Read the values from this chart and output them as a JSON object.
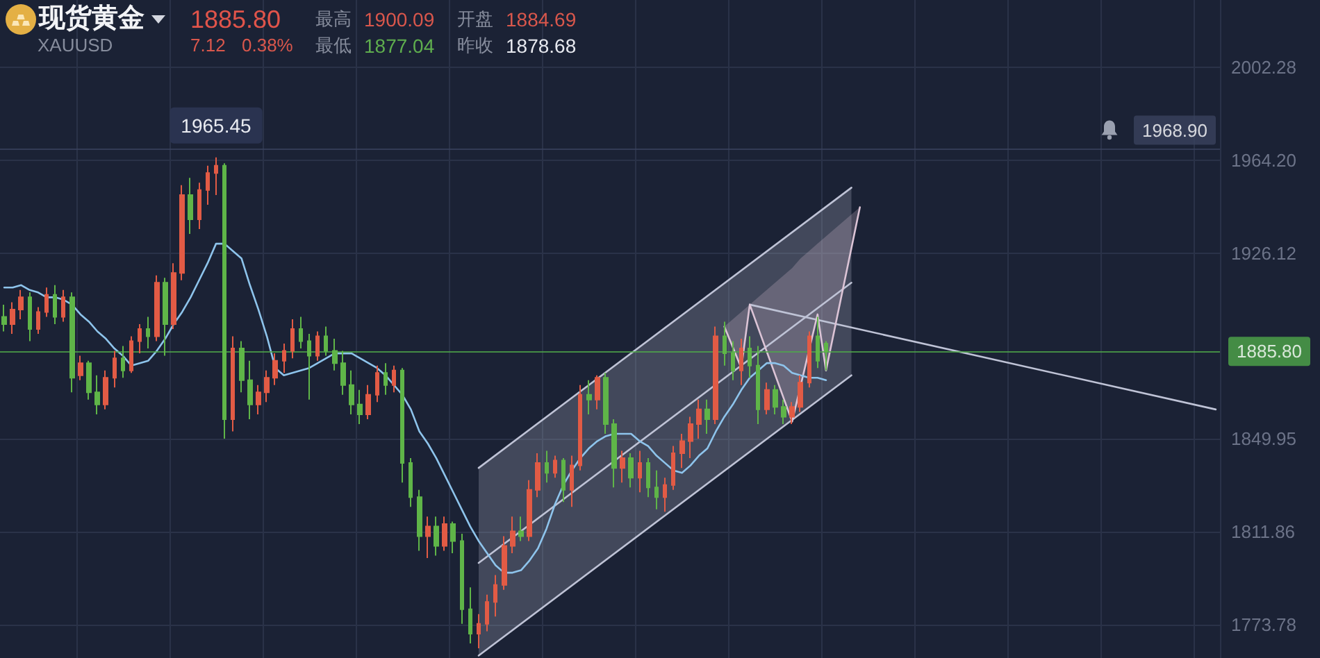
{
  "chart_data": {
    "type": "candlestick",
    "title": "现货黄金",
    "subtitle": "XAUUSD",
    "categories": [
      null,
      null,
      null,
      null,
      null,
      null,
      null,
      null,
      null,
      null,
      null,
      null,
      null,
      null,
      null,
      null,
      null,
      null,
      null,
      null,
      null,
      null,
      null,
      null,
      null,
      null,
      null,
      null,
      null,
      null,
      null,
      null,
      null,
      null,
      null,
      null,
      null,
      null,
      null,
      null,
      null,
      null,
      null,
      null,
      null,
      null,
      null,
      null,
      null,
      null,
      null,
      null,
      null,
      null,
      null,
      null,
      null,
      null,
      null,
      null,
      null,
      null,
      null,
      null,
      null,
      null,
      null,
      null,
      null,
      null,
      null,
      null,
      null,
      null,
      null,
      null,
      null,
      null,
      null,
      null,
      null,
      null,
      null,
      null,
      null,
      null,
      null,
      null,
      null,
      null,
      null,
      null,
      null,
      null,
      null,
      null,
      null,
      null,
      null,
      null,
      null,
      null,
      null,
      null,
      null,
      null,
      null,
      null,
      null,
      null,
      null,
      null,
      null,
      null,
      null,
      null,
      null,
      null,
      null,
      null,
      null,
      null,
      null,
      null,
      null,
      null,
      null,
      null,
      null,
      null,
      null,
      null,
      null,
      null,
      null,
      null,
      null,
      null,
      null,
      null,
      null,
      null,
      null,
      null
    ],
    "ohlc": [
      [
        1900,
        1905,
        1894,
        1897
      ],
      [
        1897,
        1906,
        1893,
        1903
      ],
      [
        1903,
        1911,
        1899,
        1908
      ],
      [
        1908,
        1910,
        1890,
        1895
      ],
      [
        1895,
        1904,
        1893,
        1902
      ],
      [
        1902,
        1912,
        1900,
        1909
      ],
      [
        1909,
        1913,
        1897,
        1900
      ],
      [
        1900,
        1911,
        1898,
        1908
      ],
      [
        1908,
        1910,
        1869,
        1875
      ],
      [
        1876,
        1884,
        1874,
        1881
      ],
      [
        1881,
        1882,
        1866,
        1869
      ],
      [
        1869,
        1876,
        1860,
        1864
      ],
      [
        1864,
        1878,
        1862,
        1875
      ],
      [
        1875,
        1886,
        1871,
        1883
      ],
      [
        1883,
        1888,
        1875,
        1878
      ],
      [
        1878,
        1892,
        1877,
        1890
      ],
      [
        1890,
        1897,
        1885,
        1895
      ],
      [
        1895,
        1900,
        1887,
        1892
      ],
      [
        1892,
        1917,
        1890,
        1914
      ],
      [
        1914,
        1916,
        1884,
        1897
      ],
      [
        1897,
        1922,
        1895,
        1918
      ],
      [
        1918,
        1954,
        1915,
        1950
      ],
      [
        1950,
        1957,
        1934,
        1940
      ],
      [
        1940,
        1955,
        1936,
        1952
      ],
      [
        1952,
        1962,
        1946,
        1959
      ],
      [
        1959,
        1965.45,
        1950,
        1962
      ],
      [
        1962,
        1963,
        1850,
        1858
      ],
      [
        1858,
        1892,
        1853,
        1887
      ],
      [
        1887,
        1890,
        1869,
        1874
      ],
      [
        1874,
        1882,
        1858,
        1864
      ],
      [
        1864,
        1872,
        1860,
        1869
      ],
      [
        1869,
        1878,
        1865,
        1875
      ],
      [
        1875,
        1885,
        1872,
        1882
      ],
      [
        1882,
        1889,
        1877,
        1886
      ],
      [
        1886,
        1899,
        1883,
        1895
      ],
      [
        1895,
        1900,
        1887,
        1890
      ],
      [
        1890,
        1893,
        1866,
        1884
      ],
      [
        1884,
        1894,
        1882,
        1892
      ],
      [
        1892,
        1896,
        1884,
        1886
      ],
      [
        1886,
        1891,
        1878,
        1881
      ],
      [
        1881,
        1886,
        1868,
        1872
      ],
      [
        1872,
        1878,
        1860,
        1864
      ],
      [
        1864,
        1870,
        1856,
        1860
      ],
      [
        1860,
        1872,
        1858,
        1868
      ],
      [
        1868,
        1880,
        1865,
        1877
      ],
      [
        1877,
        1881,
        1868,
        1872
      ],
      [
        1872,
        1880,
        1869,
        1878
      ],
      [
        1878,
        1879,
        1832,
        1840
      ],
      [
        1840,
        1842,
        1822,
        1826
      ],
      [
        1826,
        1829,
        1804,
        1810
      ],
      [
        1810,
        1818,
        1801,
        1814
      ],
      [
        1814,
        1818,
        1802,
        1806
      ],
      [
        1806,
        1818,
        1804,
        1815
      ],
      [
        1815,
        1816,
        1803,
        1808
      ],
      [
        1808,
        1811,
        1774,
        1780
      ],
      [
        1780,
        1789,
        1766,
        1770
      ],
      [
        1770,
        1778,
        1764,
        1774
      ],
      [
        1774,
        1786,
        1771,
        1783
      ],
      [
        1783,
        1794,
        1777,
        1790
      ],
      [
        1790,
        1810,
        1788,
        1806
      ],
      [
        1806,
        1818,
        1803,
        1812
      ],
      [
        1812,
        1818,
        1808,
        1810
      ],
      [
        1810,
        1833,
        1808,
        1829
      ],
      [
        1829,
        1844,
        1826,
        1840
      ],
      [
        1840,
        1845,
        1832,
        1836
      ],
      [
        1836,
        1843,
        1834,
        1841
      ],
      [
        1841,
        1842,
        1824,
        1829
      ],
      [
        1829,
        1843,
        1822,
        1839
      ],
      [
        1839,
        1872,
        1837,
        1868
      ],
      [
        1868,
        1874,
        1860,
        1866
      ],
      [
        1866,
        1876,
        1862,
        1875
      ],
      [
        1875,
        1877,
        1852,
        1856
      ],
      [
        1856,
        1858,
        1830,
        1838
      ],
      [
        1838,
        1845,
        1832,
        1842
      ],
      [
        1842,
        1844,
        1830,
        1834
      ],
      [
        1834,
        1845,
        1828,
        1840
      ],
      [
        1840,
        1842,
        1826,
        1830
      ],
      [
        1830,
        1837,
        1821,
        1826
      ],
      [
        1826,
        1834,
        1820,
        1831
      ],
      [
        1831,
        1847,
        1829,
        1844
      ],
      [
        1844,
        1852,
        1838,
        1849
      ],
      [
        1849,
        1859,
        1842,
        1856
      ],
      [
        1856,
        1866,
        1850,
        1862
      ],
      [
        1862,
        1866,
        1852,
        1858
      ],
      [
        1858,
        1896,
        1856,
        1892
      ],
      [
        1892,
        1898,
        1880,
        1885
      ],
      [
        1885,
        1890,
        1874,
        1878
      ],
      [
        1878,
        1891,
        1872,
        1887
      ],
      [
        1887,
        1892,
        1875,
        1880
      ],
      [
        1880,
        1888,
        1856,
        1862
      ],
      [
        1862,
        1873,
        1860,
        1870
      ],
      [
        1870,
        1872,
        1860,
        1863
      ],
      [
        1863,
        1866,
        1856,
        1859
      ],
      [
        1859,
        1865,
        1856,
        1863
      ],
      [
        1863,
        1876,
        1861,
        1873
      ],
      [
        1873,
        1894,
        1871,
        1892
      ],
      [
        1892,
        1900,
        1879,
        1882
      ],
      [
        1889,
        1890,
        1878,
        1885.8
      ],
      null,
      null,
      null,
      null,
      null,
      null,
      null,
      null,
      null,
      null,
      null,
      null,
      null,
      null,
      null,
      null,
      null,
      null,
      null,
      null,
      null,
      null,
      null,
      null,
      null,
      null,
      null,
      null,
      null,
      null,
      null,
      null,
      null,
      null,
      null,
      null,
      null,
      null,
      null,
      null,
      null,
      null,
      null,
      null,
      null,
      null
    ],
    "colors": [
      "#5fb548",
      "#e25b45",
      "#e25b45",
      "#5fb548",
      "#e25b45",
      "#e25b45",
      "#5fb548",
      "#e25b45",
      "#5fb548",
      "#e25b45",
      "#5fb548",
      "#5fb548",
      "#e25b45",
      "#e25b45",
      "#5fb548",
      "#e25b45",
      "#e25b45",
      "#5fb548",
      "#e25b45",
      "#5fb548",
      "#e25b45",
      "#e25b45",
      "#5fb548",
      "#e25b45",
      "#e25b45",
      "#e25b45",
      "#5fb548",
      "#e25b45",
      "#5fb548",
      "#5fb548",
      "#e25b45",
      "#e25b45",
      "#e25b45",
      "#e25b45",
      "#e25b45",
      "#5fb548",
      "#5fb548",
      "#e25b45",
      "#5fb548",
      "#5fb548",
      "#5fb548",
      "#5fb548",
      "#5fb548",
      "#e25b45",
      "#e25b45",
      "#5fb548",
      "#e25b45",
      "#5fb548",
      "#5fb548",
      "#5fb548",
      "#e25b45",
      "#5fb548",
      "#e25b45",
      "#5fb548",
      "#5fb548",
      "#5fb548",
      "#e25b45",
      "#e25b45",
      "#e25b45",
      "#e25b45",
      "#e25b45",
      "#5fb548",
      "#e25b45",
      "#e25b45",
      "#5fb548",
      "#e25b45",
      "#5fb548",
      "#e25b45",
      "#e25b45",
      "#5fb548",
      "#e25b45",
      "#5fb548",
      "#5fb548",
      "#e25b45",
      "#5fb548",
      "#e25b45",
      "#5fb548",
      "#5fb548",
      "#e25b45",
      "#e25b45",
      "#e25b45",
      "#e25b45",
      "#e25b45",
      "#5fb548",
      "#e25b45",
      "#5fb548",
      "#5fb548",
      "#e25b45",
      "#5fb548",
      "#5fb548",
      "#e25b45",
      "#5fb548",
      "#5fb548",
      "#e25b45",
      "#e25b45",
      "#e25b45",
      "#5fb548",
      "#5fb548",
      null,
      null,
      null,
      null,
      null,
      null,
      null,
      null,
      null,
      null,
      null,
      null,
      null,
      null,
      null,
      null,
      null,
      null,
      null,
      null,
      null,
      null,
      null,
      null,
      null,
      null,
      null,
      null,
      null,
      null,
      null,
      null,
      null,
      null,
      null,
      null,
      null,
      null,
      null,
      null,
      null,
      null,
      null,
      null,
      null,
      null
    ],
    "ylim": [
      1760,
      2030
    ],
    "yticks": [
      1773.78,
      1811.86,
      1849.95,
      1926.12,
      {
        "value": 1964.2,
        "label": "1964.20"
      },
      2002.28
    ],
    "grid": true,
    "tick_labels": "y",
    "series": [
      {
        "type": "line",
        "color": "#bfc3d6",
        "values": [
          null,
          null,
          null,
          null,
          null,
          null,
          null,
          null,
          null,
          null,
          null,
          null,
          null,
          null,
          null,
          null,
          null,
          null,
          null,
          null,
          null,
          null,
          null,
          null,
          null,
          null,
          null,
          null,
          null,
          null,
          null,
          null,
          null,
          null,
          null,
          null,
          null,
          null,
          null,
          null,
          null,
          null,
          null,
          null,
          null,
          null,
          null,
          null,
          null,
          null,
          null,
          null,
          null,
          null,
          null,
          null,
          1838,
          null,
          null,
          null,
          null,
          null,
          null,
          null,
          null,
          null,
          null,
          null,
          null,
          null,
          null,
          null,
          null,
          null,
          null,
          null,
          null,
          null,
          null,
          null,
          null,
          null,
          null,
          null,
          null,
          null,
          null,
          null,
          null,
          null,
          null,
          null,
          null,
          null,
          null,
          null,
          null,
          null,
          null,
          null,
          1953,
          null,
          null,
          null,
          null,
          null,
          null,
          null,
          null,
          null,
          null,
          null,
          null,
          null,
          null,
          null,
          null,
          null,
          null,
          null,
          null,
          null,
          null,
          null,
          null,
          null,
          null,
          null,
          null,
          null,
          null,
          null,
          null,
          null,
          null,
          null,
          null,
          null,
          null,
          null,
          null,
          null,
          null,
          null
        ]
      },
      {
        "type": "line",
        "color": "#bfc3d6",
        "values": [
          null,
          null,
          null,
          null,
          null,
          null,
          null,
          null,
          null,
          null,
          null,
          null,
          null,
          null,
          null,
          null,
          null,
          null,
          null,
          null,
          null,
          null,
          null,
          null,
          null,
          null,
          null,
          null,
          null,
          null,
          null,
          null,
          null,
          null,
          null,
          null,
          null,
          null,
          null,
          null,
          null,
          null,
          null,
          null,
          null,
          null,
          null,
          null,
          null,
          null,
          null,
          null,
          null,
          null,
          null,
          null,
          1799,
          null,
          null,
          null,
          null,
          null,
          null,
          null,
          null,
          null,
          null,
          null,
          null,
          null,
          null,
          null,
          null,
          null,
          null,
          null,
          null,
          null,
          null,
          null,
          null,
          null,
          null,
          null,
          null,
          null,
          null,
          null,
          null,
          null,
          null,
          null,
          null,
          null,
          null,
          null,
          null,
          null,
          null,
          null,
          1914,
          null,
          null,
          null,
          null,
          null,
          null,
          null,
          null,
          null,
          null,
          null,
          null,
          null,
          null,
          null,
          null,
          null,
          null,
          null,
          null,
          null,
          null,
          null,
          null,
          null,
          null,
          null,
          null,
          null,
          null,
          null,
          null,
          null,
          null,
          null,
          null,
          null,
          null,
          null,
          null,
          null,
          null,
          null
        ],
        "lower": [
          null,
          null,
          null,
          null,
          null,
          null,
          null,
          null,
          null,
          null,
          null,
          null,
          null,
          null,
          null,
          null,
          null,
          null,
          null,
          null,
          null,
          null,
          null,
          null,
          null,
          null,
          null,
          null,
          null,
          null,
          null,
          null,
          null,
          null,
          null,
          null,
          null,
          null,
          null,
          null,
          null,
          null,
          null,
          null,
          null,
          null,
          null,
          null,
          null,
          null,
          null,
          null,
          null,
          null,
          null,
          null,
          1761,
          1764,
          1766,
          1769,
          1771,
          1774,
          1777,
          1779,
          1782,
          1785,
          1787,
          1790,
          1792,
          1795,
          1798,
          1800,
          1803,
          1805,
          1808,
          1811,
          1813,
          1816,
          1819,
          1821,
          1824,
          1826,
          1829,
          1832,
          1834,
          1837,
          1839,
          1842,
          1845,
          1847,
          1850,
          1852,
          1855,
          1858,
          1860,
          1863,
          1866,
          1868,
          1871,
          1873,
          1876,
          null,
          null,
          null,
          null,
          null,
          null,
          null,
          null,
          null,
          null,
          null,
          null,
          null,
          null,
          null,
          null,
          null,
          null,
          null,
          null,
          null,
          null,
          null,
          null,
          null,
          null,
          null,
          null,
          null,
          null,
          null,
          null,
          null,
          null,
          null,
          null,
          null,
          null,
          null,
          null,
          null,
          null,
          null
        ],
        "upper": [
          null,
          null,
          null,
          null,
          null,
          null,
          null,
          null,
          null,
          null,
          null,
          null,
          null,
          null,
          null,
          null,
          null,
          null,
          null,
          null,
          null,
          null,
          null,
          null,
          null,
          null,
          null,
          null,
          null,
          null,
          null,
          null,
          null,
          null,
          null,
          null,
          null,
          null,
          null,
          null,
          null,
          null,
          null,
          null,
          null,
          null,
          null,
          null,
          null,
          null,
          null,
          null,
          null,
          null,
          null,
          null,
          1838,
          1841,
          1843,
          1846,
          1848,
          1851,
          1854,
          1856,
          1859,
          1862,
          1864,
          1867,
          1869,
          1872,
          1875,
          1877,
          1880,
          1882,
          1885,
          1888,
          1890,
          1893,
          1896,
          1898,
          1901,
          1903,
          1906,
          1909,
          1911,
          1914,
          1916,
          1919,
          1922,
          1924,
          1927,
          1929,
          1932,
          1935,
          1937,
          1940,
          1943,
          1945,
          1948,
          1950,
          1953,
          null,
          null,
          null,
          null,
          null,
          null,
          null,
          null,
          null,
          null,
          null,
          null,
          null,
          null,
          null,
          null,
          null,
          null,
          null,
          null,
          null,
          null,
          null,
          null,
          null,
          null,
          null,
          null,
          null,
          null,
          null,
          null,
          null,
          null,
          null,
          null,
          null,
          null,
          null,
          null,
          null,
          null,
          null
        ]
      },
      {
        "type": "line",
        "color": "#bfc3d6",
        "values": [
          null,
          null,
          null,
          null,
          null,
          null,
          null,
          null,
          null,
          null,
          null,
          null,
          null,
          null,
          null,
          null,
          null,
          null,
          null,
          null,
          null,
          null,
          null,
          null,
          null,
          null,
          null,
          null,
          null,
          null,
          null,
          null,
          null,
          null,
          null,
          null,
          null,
          null,
          null,
          null,
          null,
          null,
          null,
          null,
          null,
          null,
          null,
          null,
          null,
          null,
          null,
          null,
          null,
          null,
          null,
          null,
          1761,
          null,
          null,
          null,
          null,
          null,
          null,
          null,
          null,
          null,
          null,
          null,
          null,
          null,
          null,
          null,
          null,
          null,
          null,
          null,
          null,
          null,
          null,
          null,
          null,
          null,
          null,
          null,
          null,
          null,
          null,
          null,
          null,
          null,
          null,
          null,
          null,
          null,
          null,
          null,
          null,
          null,
          null,
          null,
          1876,
          null,
          null,
          null,
          null,
          null,
          null,
          null,
          null,
          null,
          null,
          null,
          null,
          null,
          null,
          null,
          null,
          null,
          null,
          null,
          null,
          null,
          null,
          null,
          null,
          null,
          null,
          null,
          null,
          null,
          null,
          null,
          null,
          null,
          null,
          null,
          null,
          null,
          null,
          null,
          null,
          null,
          null,
          null
        ]
      },
      {
        "type": "line",
        "color": "#bfc3d6",
        "values": [
          null,
          null,
          null,
          null,
          null,
          null,
          null,
          null,
          null,
          null,
          null,
          null,
          null,
          null,
          null,
          null,
          null,
          null,
          null,
          null,
          null,
          null,
          null,
          null,
          null,
          null,
          null,
          null,
          null,
          null,
          null,
          null,
          null,
          null,
          null,
          null,
          null,
          null,
          null,
          null,
          null,
          null,
          null,
          null,
          null,
          null,
          null,
          null,
          null,
          null,
          null,
          null,
          null,
          null,
          null,
          null,
          null,
          null,
          null,
          null,
          null,
          null,
          null,
          null,
          null,
          null,
          null,
          null,
          null,
          null,
          null,
          null,
          null,
          null,
          null,
          null,
          null,
          null,
          null,
          null,
          null,
          null,
          null,
          null,
          null,
          null,
          null,
          null,
          1905,
          null,
          null,
          null,
          null,
          null,
          null,
          null,
          null,
          null,
          null,
          null,
          null,
          null,
          null,
          null,
          null,
          null,
          null,
          null,
          null,
          null,
          null,
          null,
          null,
          null,
          null,
          null,
          null,
          null,
          null,
          null,
          null,
          null,
          null,
          null,
          null,
          null,
          null,
          null,
          null,
          null,
          null,
          null,
          null,
          null,
          null,
          null,
          null,
          null,
          null,
          null,
          null,
          null,
          null,
          1862
        ]
      },
      {
        "type": "line",
        "color": "#dcc4d6",
        "values": [
          null,
          null,
          null,
          null,
          null,
          null,
          null,
          null,
          null,
          null,
          null,
          null,
          null,
          null,
          null,
          null,
          null,
          null,
          null,
          null,
          null,
          null,
          null,
          null,
          null,
          null,
          null,
          null,
          null,
          null,
          null,
          null,
          null,
          null,
          null,
          null,
          null,
          null,
          null,
          null,
          null,
          null,
          null,
          null,
          null,
          null,
          null,
          null,
          null,
          null,
          null,
          null,
          null,
          null,
          null,
          null,
          null,
          null,
          null,
          null,
          null,
          null,
          null,
          null,
          null,
          null,
          null,
          null,
          null,
          null,
          null,
          null,
          null,
          null,
          null,
          null,
          null,
          null,
          null,
          null,
          null,
          null,
          null,
          null,
          null,
          1896,
          null,
          1879,
          1905,
          null,
          null,
          null,
          null,
          1857,
          null,
          null,
          1901,
          1878,
          null,
          null,
          null,
          1945,
          null,
          null,
          null,
          null,
          null,
          null,
          null,
          null,
          null,
          null,
          null,
          null,
          null,
          null,
          null,
          null,
          null,
          null,
          null,
          null,
          null,
          null,
          null,
          null,
          null,
          null,
          null,
          null,
          null,
          null,
          null,
          null,
          null,
          null,
          null,
          null,
          null,
          null,
          null,
          null,
          null,
          null
        ],
        "lower": [
          null,
          null,
          null,
          null,
          null,
          null,
          null,
          null,
          null,
          null,
          null,
          null,
          null,
          null,
          null,
          null,
          null,
          null,
          null,
          null,
          null,
          null,
          null,
          null,
          null,
          null,
          null,
          null,
          null,
          null,
          null,
          null,
          null,
          null,
          null,
          null,
          null,
          null,
          null,
          null,
          null,
          null,
          null,
          null,
          null,
          null,
          null,
          null,
          null,
          null,
          null,
          null,
          null,
          null,
          null,
          null,
          null,
          null,
          null,
          null,
          null,
          null,
          null,
          null,
          null,
          null,
          null,
          null,
          null,
          null,
          null,
          null,
          null,
          null,
          null,
          null,
          null,
          null,
          null,
          null,
          null,
          null,
          null,
          null,
          null,
          1896,
          1888,
          1879,
          1905,
          1895,
          1886,
          1876,
          1867,
          1857,
          1872,
          1886,
          1901,
          1878,
          1895,
          1912,
          1928,
          1945,
          null,
          null,
          null,
          null,
          null,
          null,
          null,
          null,
          null,
          null,
          null,
          null,
          null,
          null,
          null,
          null,
          null,
          null,
          null,
          null,
          null,
          null,
          null,
          null,
          null,
          null,
          null,
          null,
          null,
          null,
          null,
          null,
          null,
          null,
          null,
          null,
          null,
          null,
          null,
          null,
          null,
          null
        ],
        "upper": [
          null,
          null,
          null,
          null,
          null,
          null,
          null,
          null,
          null,
          null,
          null,
          null,
          null,
          null,
          null,
          null,
          null,
          null,
          null,
          null,
          null,
          null,
          null,
          null,
          null,
          null,
          null,
          null,
          null,
          null,
          null,
          null,
          null,
          null,
          null,
          null,
          null,
          null,
          null,
          null,
          null,
          null,
          null,
          null,
          null,
          null,
          null,
          null,
          null,
          null,
          null,
          null,
          null,
          null,
          null,
          null,
          null,
          null,
          null,
          null,
          null,
          null,
          null,
          null,
          null,
          null,
          null,
          null,
          null,
          null,
          null,
          null,
          null,
          null,
          null,
          null,
          null,
          null,
          null,
          null,
          null,
          null,
          null,
          null,
          null,
          1896,
          1899,
          1902,
          1905,
          1908,
          1911,
          1914,
          1917,
          1920,
          1924,
          1927,
          1930,
          1933,
          1936,
          1939,
          1942,
          1945,
          null,
          null,
          null,
          null,
          null,
          null,
          null,
          null,
          null,
          null,
          null,
          null,
          null,
          null,
          null,
          null,
          null,
          null,
          null,
          null,
          null,
          null,
          null,
          null,
          null,
          null,
          null,
          null,
          null,
          null,
          null,
          null,
          null,
          null,
          null,
          null,
          null,
          null,
          null,
          null,
          null,
          null
        ]
      },
      {
        "type": "line",
        "color": "#8ec4ec",
        "values": [
          1912,
          1912,
          1913,
          1911,
          1910,
          1908,
          1908,
          1907,
          1905,
          1901,
          1898,
          1894,
          1891,
          1887,
          1884,
          1880,
          1881,
          1882,
          1886,
          1891,
          1897,
          1902,
          1908,
          1915,
          1922,
          1930,
          1930,
          1927,
          1924,
          1913,
          1903,
          1892,
          1879,
          1876,
          1877,
          1878,
          1879,
          1881,
          1883,
          1885,
          1885,
          1885,
          1883,
          1881,
          1879,
          1876,
          1872,
          1868,
          1862,
          1853,
          1848,
          1842,
          1835,
          1828,
          1821,
          1814,
          1808,
          1803,
          1798,
          1795,
          1795,
          1796,
          1800,
          1805,
          1813,
          1823,
          1831,
          1837,
          1842,
          1846,
          1849,
          1851,
          1852,
          1852,
          1852,
          1849,
          1847,
          1843,
          1840,
          1837,
          1836,
          1839,
          1843,
          1846,
          1853,
          1859,
          1864,
          1870,
          1875,
          1878,
          1881,
          1881,
          1880,
          1877,
          1876,
          1875,
          1875,
          1874,
          null,
          null,
          null,
          null,
          null,
          null,
          null,
          null,
          null,
          null,
          null,
          null,
          null,
          null,
          null,
          null,
          null,
          null,
          null,
          null,
          null,
          null,
          null,
          null,
          null,
          null,
          null,
          null,
          null,
          null,
          null,
          null,
          null,
          null,
          null,
          null,
          null,
          null,
          null,
          null,
          null,
          null,
          null,
          null,
          null,
          null
        ]
      }
    ],
    "ref_lines": [
      {
        "axis": "y",
        "value": 1885.8,
        "label": "1885.80",
        "color": "#4fa84a"
      },
      {
        "axis": "y",
        "value": 1968.9,
        "label": "1968.90",
        "color": "#39425e"
      }
    ],
    "annotations": [
      "1885.80",
      "7.12",
      "0.38%",
      "最高",
      "1900.09",
      "开盘",
      "1884.69",
      "最低",
      "1877.04",
      "昨收",
      "1878.68",
      {
        "text": "1965.45",
        "y": 1965.45
      }
    ]
  }
}
